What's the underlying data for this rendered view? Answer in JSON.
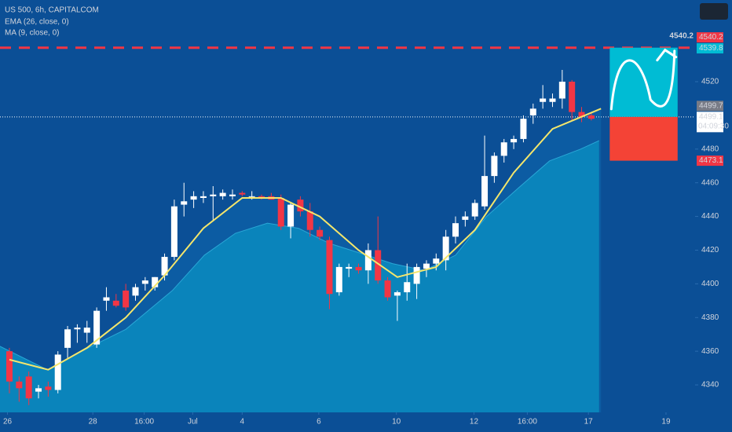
{
  "chart_data": {
    "type": "candlestick",
    "title": "US 500, 6h, CAPITALCOM",
    "indicators_legend": [
      "EMA (26, close, 0)",
      "MA (9, close, 0)"
    ],
    "candles": {
      "open": [
        4360,
        4342,
        4345,
        4336,
        4339,
        4337,
        4362,
        4373,
        4371,
        4364,
        4390,
        4390,
        4396,
        4393,
        4400,
        4398,
        4405,
        4416,
        4447,
        4450,
        4451,
        4452,
        4452,
        4452,
        4454,
        4452,
        4452,
        4452,
        4451,
        4434,
        4450,
        4443,
        4432,
        4426,
        4395,
        4409,
        4410,
        4408,
        4420,
        4402,
        4393,
        4395,
        4400,
        4409,
        4412,
        4414,
        4428,
        4438,
        4440,
        4446,
        4464,
        4476,
        4484,
        4486,
        4500,
        4508,
        4508,
        4510,
        4520,
        4502,
        4500
      ],
      "high": [
        4362,
        4345,
        4348,
        4340,
        4342,
        4360,
        4375,
        4376,
        4378,
        4386,
        4398,
        4394,
        4400,
        4400,
        4404,
        4404,
        4418,
        4450,
        4460,
        4455,
        4455,
        4458,
        4456,
        4456,
        4455,
        4455,
        4453,
        4454,
        4453,
        4448,
        4452,
        4448,
        4434,
        4428,
        4412,
        4412,
        4412,
        4424,
        4440,
        4404,
        4396,
        4412,
        4412,
        4414,
        4418,
        4432,
        4440,
        4443,
        4450,
        4488,
        4478,
        4486,
        4488,
        4500,
        4507,
        4518,
        4513,
        4527,
        4521,
        4505,
        4502
      ],
      "low": [
        4335,
        4330,
        4328,
        4332,
        4333,
        4335,
        4356,
        4365,
        4365,
        4362,
        4384,
        4386,
        4384,
        4390,
        4396,
        4396,
        4402,
        4414,
        4440,
        4445,
        4448,
        4438,
        4450,
        4450,
        4452,
        4450,
        4450,
        4450,
        4432,
        4427,
        4440,
        4428,
        4426,
        4385,
        4393,
        4404,
        4406,
        4400,
        4400,
        4390,
        4378,
        4390,
        4391,
        4404,
        4408,
        4408,
        4424,
        4434,
        4438,
        4444,
        4460,
        4472,
        4480,
        4484,
        4495,
        4504,
        4505,
        4504,
        4497,
        4496,
        4497
      ],
      "close": [
        4342,
        4338,
        4332,
        4338,
        4337,
        4358,
        4373,
        4374,
        4374,
        4384,
        4392,
        4387,
        4386,
        4398,
        4402,
        4404,
        4416,
        4446,
        4449,
        4452,
        4452,
        4453,
        4454,
        4453,
        4453,
        4452,
        4451,
        4450,
        4434,
        4447,
        4443,
        4432,
        4428,
        4394,
        4410,
        4410,
        4408,
        4420,
        4402,
        4392,
        4395,
        4401,
        4410,
        4412,
        4415,
        4428,
        4436,
        4440,
        4448,
        4464,
        4476,
        4484,
        4486,
        4498,
        4504,
        4510,
        4510,
        4520,
        4502,
        4499,
        4498
      ],
      "up_color": "#ffffff",
      "down_color": "#f23645"
    },
    "ema": {
      "color": "#f5e66b",
      "fill": "#0c5ca3",
      "x": [
        0,
        4,
        8,
        12,
        16,
        20,
        24,
        28,
        32,
        36,
        40,
        44,
        48,
        52,
        56,
        61
      ],
      "values": [
        4355,
        4349,
        4362,
        4380,
        4405,
        4433,
        4451,
        4451,
        4440,
        4420,
        4404,
        4410,
        4432,
        4466,
        4492,
        4504
      ]
    },
    "ma": {
      "fill": "#0a84bb",
      "x": [
        -1.0,
        3.9,
        7.1,
        12.0,
        16.8,
        20.1,
        23.3,
        26.6,
        29.8,
        33.0,
        36.3,
        39.5,
        42.8,
        46.0,
        49.2,
        52.5,
        55.7,
        58.9,
        60.8
      ],
      "values": [
        4363,
        4349,
        4359,
        4373,
        4396,
        4417,
        4430,
        4436,
        4433,
        4424,
        4418,
        4412,
        4408,
        4417,
        4440,
        4457,
        4473,
        4480,
        4485
      ]
    },
    "target": 4540.2,
    "last_price": 4499.1,
    "countdown": "04:09:30",
    "price_tags": [
      {
        "value": 4540.2,
        "color": "#f23645"
      },
      {
        "value": 4539.8,
        "color": "#00bcd4"
      },
      {
        "value": 4499.7,
        "color": "#787b86"
      },
      {
        "value": 4499.1,
        "color": "#ffffff"
      },
      {
        "value": 4473.1,
        "color": "#f23645"
      }
    ],
    "projection": {
      "xlim": [
        61.9,
        68.9
      ],
      "target": 4540.2,
      "entry": 4499.1,
      "stop": 4473.1,
      "target_color": "#00bcd4",
      "stop_color": "#f44336"
    },
    "ylim": [
      4323.7,
      4568.5
    ],
    "yticks": [
      4340,
      4360,
      4380,
      4400,
      4420,
      4440,
      4460,
      4480,
      4520
    ],
    "xlim": [
      -0.97,
      70.7
    ],
    "xticks": [
      {
        "value": -0.2,
        "label": "26"
      },
      {
        "value": 8.6,
        "label": "28"
      },
      {
        "value": 13.9,
        "label": "16:00"
      },
      {
        "value": 18.9,
        "label": "Jul"
      },
      {
        "value": 24.0,
        "label": "4"
      },
      {
        "value": 31.9,
        "label": "6"
      },
      {
        "value": 39.9,
        "label": "10"
      },
      {
        "value": 47.9,
        "label": "12"
      },
      {
        "value": 53.4,
        "label": "16:00"
      },
      {
        "value": 59.7,
        "label": "17"
      },
      {
        "value": 67.7,
        "label": "19"
      }
    ]
  }
}
